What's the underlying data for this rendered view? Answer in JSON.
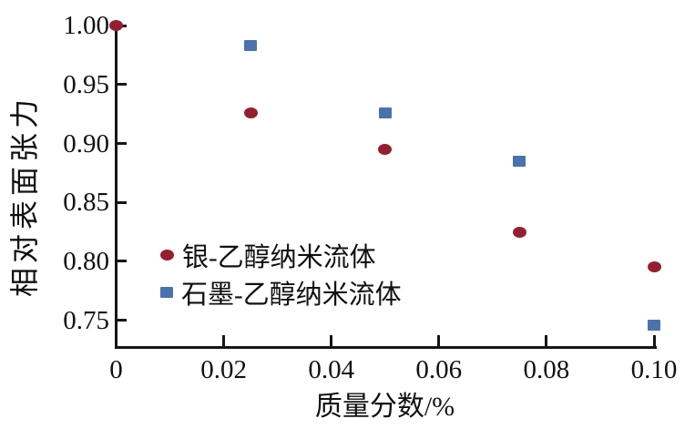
{
  "chart_data": {
    "type": "scatter",
    "title": "",
    "xlabel": "质量分数/%",
    "ylabel": "相对表面张力",
    "xlim": [
      0,
      0.1
    ],
    "ylim": [
      0.728,
      1.001
    ],
    "xticks": [
      0,
      0.02,
      0.04,
      0.06,
      0.08,
      0.1
    ],
    "xtick_labels": [
      "0",
      "0.02",
      "0.04",
      "0.06",
      "0.08",
      "0.10"
    ],
    "yticks": [
      0.75,
      0.8,
      0.85,
      0.9,
      0.95,
      1.0
    ],
    "ytick_labels": [
      "0.75",
      "0.80",
      "0.85",
      "0.90",
      "0.95",
      "1.00"
    ],
    "grid": false,
    "legend_position": "inside-lower-left",
    "axis_color": "#161616",
    "series": [
      {
        "name": "银-乙醇纳米流体",
        "marker": "circle",
        "color": "#951F30",
        "points": [
          [
            0,
            1.0
          ],
          [
            0.025,
            0.926
          ],
          [
            0.05,
            0.895
          ],
          [
            0.075,
            0.825
          ],
          [
            0.1,
            0.795
          ]
        ]
      },
      {
        "name": "石墨-乙醇纳米流体",
        "marker": "square",
        "color": "#4A72AE",
        "points": [
          [
            0.025,
            0.983
          ],
          [
            0.05,
            0.926
          ],
          [
            0.075,
            0.885
          ],
          [
            0.1,
            0.746
          ]
        ]
      }
    ]
  }
}
